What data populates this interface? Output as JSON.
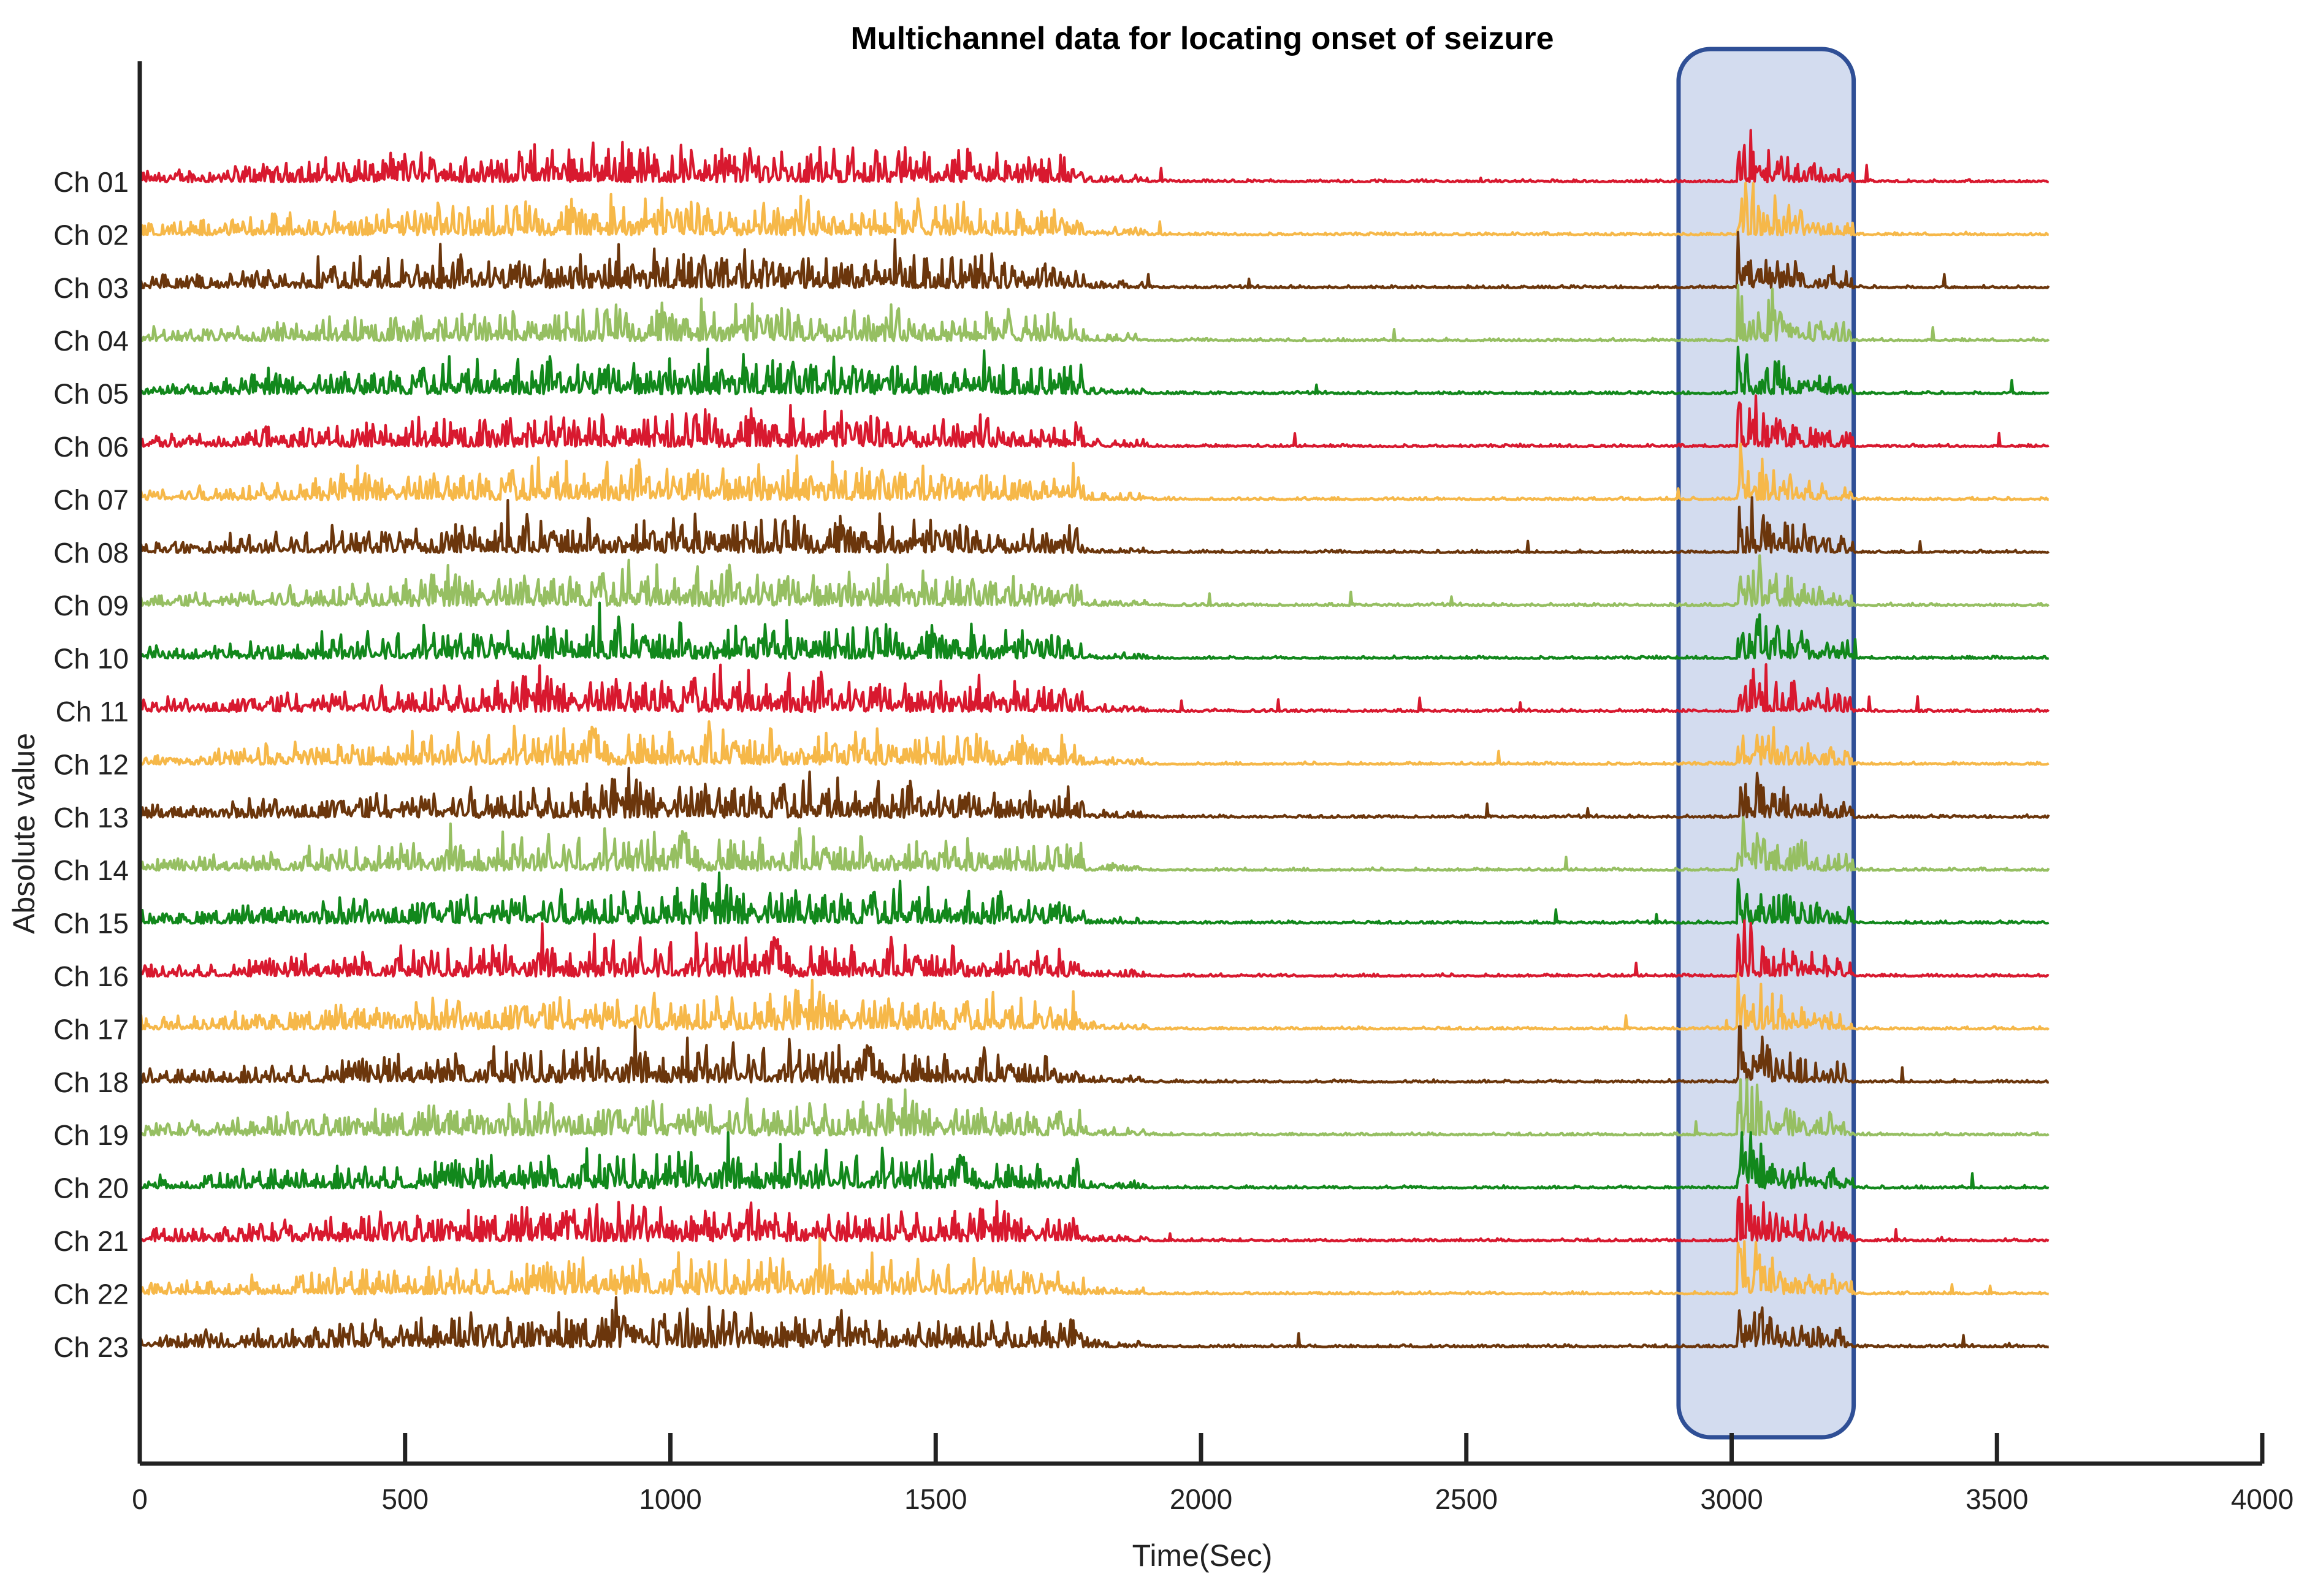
{
  "chart_data": {
    "type": "line",
    "title": "Multichannel data for locating onset of seizure",
    "xlabel": "Time(Sec)",
    "ylabel": "Absolute value",
    "xlim": [
      0,
      4000
    ],
    "xticks": [
      0,
      500,
      1000,
      1500,
      2000,
      2500,
      3000,
      3500,
      4000
    ],
    "recording_end": 3600,
    "grid": false,
    "legend": "none",
    "highlight": {
      "x_start": 2900,
      "x_end": 3230,
      "fill": "#d3dcef",
      "stroke": "#2f4f96"
    },
    "palette": [
      "#d8192f",
      "#f6b849",
      "#6b360c",
      "#96bf62",
      "#12881c"
    ],
    "channels": [
      "Ch 01",
      "Ch 02",
      "Ch 03",
      "Ch 04",
      "Ch 05",
      "Ch 06",
      "Ch 07",
      "Ch 08",
      "Ch 09",
      "Ch 10",
      "Ch 11",
      "Ch 12",
      "Ch 13",
      "Ch 14",
      "Ch 15",
      "Ch 16",
      "Ch 17",
      "Ch 18",
      "Ch 19",
      "Ch 20",
      "Ch 21",
      "Ch 22",
      "Ch 23"
    ]
  }
}
